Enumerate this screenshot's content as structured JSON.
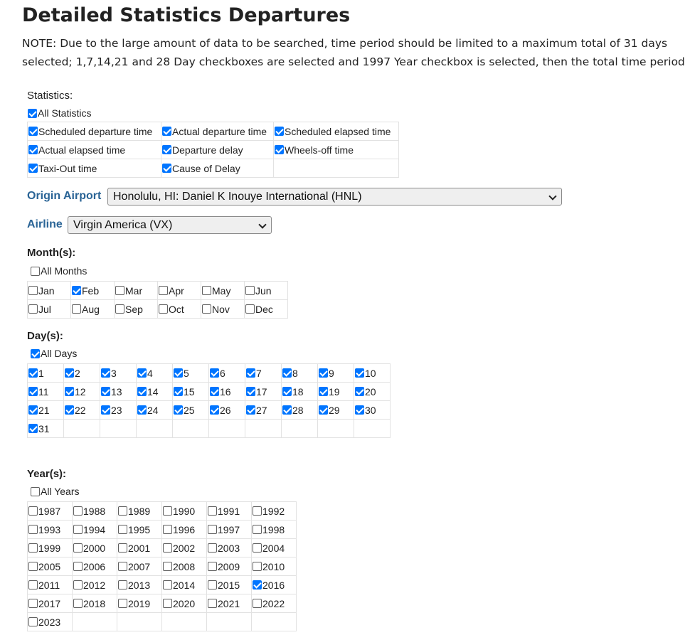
{
  "page": {
    "title": "Detailed Statistics Departures",
    "note_line1": "NOTE: Due to the large amount of data to be searched, time period should be limited to a maximum total of 31 days",
    "note_line2": "selected; 1,7,14,21 and 28 Day checkboxes are selected and 1997 Year checkbox is selected, then the total time period"
  },
  "statistics": {
    "label": "Statistics:",
    "all_label": "All Statistics",
    "all_checked": true,
    "items": [
      {
        "label": "Scheduled departure time",
        "checked": true
      },
      {
        "label": "Actual departure time",
        "checked": true
      },
      {
        "label": "Scheduled elapsed time",
        "checked": true
      },
      {
        "label": "Actual elapsed time",
        "checked": true
      },
      {
        "label": "Departure delay",
        "checked": true
      },
      {
        "label": "Wheels-off time",
        "checked": true
      },
      {
        "label": "Taxi-Out time",
        "checked": true
      },
      {
        "label": "Cause of Delay",
        "checked": true
      }
    ]
  },
  "origin": {
    "label": "Origin Airport",
    "value": "Honolulu, HI: Daniel K Inouye International (HNL)"
  },
  "airline": {
    "label": "Airline",
    "value": "Virgin America (VX)"
  },
  "months": {
    "label": "Month(s):",
    "all_label": "All Months",
    "all_checked": false,
    "items": [
      {
        "label": "Jan",
        "checked": false
      },
      {
        "label": "Feb",
        "checked": true
      },
      {
        "label": "Mar",
        "checked": false
      },
      {
        "label": "Apr",
        "checked": false
      },
      {
        "label": "May",
        "checked": false
      },
      {
        "label": "Jun",
        "checked": false
      },
      {
        "label": "Jul",
        "checked": false
      },
      {
        "label": "Aug",
        "checked": false
      },
      {
        "label": "Sep",
        "checked": false
      },
      {
        "label": "Oct",
        "checked": false
      },
      {
        "label": "Nov",
        "checked": false
      },
      {
        "label": "Dec",
        "checked": false
      }
    ]
  },
  "days": {
    "label": "Day(s):",
    "all_label": "All Days",
    "all_checked": true,
    "items": [
      {
        "label": "1",
        "checked": true
      },
      {
        "label": "2",
        "checked": true
      },
      {
        "label": "3",
        "checked": true
      },
      {
        "label": "4",
        "checked": true
      },
      {
        "label": "5",
        "checked": true
      },
      {
        "label": "6",
        "checked": true
      },
      {
        "label": "7",
        "checked": true
      },
      {
        "label": "8",
        "checked": true
      },
      {
        "label": "9",
        "checked": true
      },
      {
        "label": "10",
        "checked": true
      },
      {
        "label": "11",
        "checked": true
      },
      {
        "label": "12",
        "checked": true
      },
      {
        "label": "13",
        "checked": true
      },
      {
        "label": "14",
        "checked": true
      },
      {
        "label": "15",
        "checked": true
      },
      {
        "label": "16",
        "checked": true
      },
      {
        "label": "17",
        "checked": true
      },
      {
        "label": "18",
        "checked": true
      },
      {
        "label": "19",
        "checked": true
      },
      {
        "label": "20",
        "checked": true
      },
      {
        "label": "21",
        "checked": true
      },
      {
        "label": "22",
        "checked": true
      },
      {
        "label": "23",
        "checked": true
      },
      {
        "label": "24",
        "checked": true
      },
      {
        "label": "25",
        "checked": true
      },
      {
        "label": "26",
        "checked": true
      },
      {
        "label": "27",
        "checked": true
      },
      {
        "label": "28",
        "checked": true
      },
      {
        "label": "29",
        "checked": true
      },
      {
        "label": "30",
        "checked": true
      },
      {
        "label": "31",
        "checked": true
      }
    ]
  },
  "years": {
    "label": "Year(s):",
    "all_label": "All Years",
    "all_checked": false,
    "items": [
      {
        "label": "1987",
        "checked": false
      },
      {
        "label": "1988",
        "checked": false
      },
      {
        "label": "1989",
        "checked": false
      },
      {
        "label": "1990",
        "checked": false
      },
      {
        "label": "1991",
        "checked": false
      },
      {
        "label": "1992",
        "checked": false
      },
      {
        "label": "1993",
        "checked": false
      },
      {
        "label": "1994",
        "checked": false
      },
      {
        "label": "1995",
        "checked": false
      },
      {
        "label": "1996",
        "checked": false
      },
      {
        "label": "1997",
        "checked": false
      },
      {
        "label": "1998",
        "checked": false
      },
      {
        "label": "1999",
        "checked": false
      },
      {
        "label": "2000",
        "checked": false
      },
      {
        "label": "2001",
        "checked": false
      },
      {
        "label": "2002",
        "checked": false
      },
      {
        "label": "2003",
        "checked": false
      },
      {
        "label": "2004",
        "checked": false
      },
      {
        "label": "2005",
        "checked": false
      },
      {
        "label": "2006",
        "checked": false
      },
      {
        "label": "2007",
        "checked": false
      },
      {
        "label": "2008",
        "checked": false
      },
      {
        "label": "2009",
        "checked": false
      },
      {
        "label": "2010",
        "checked": false
      },
      {
        "label": "2011",
        "checked": false
      },
      {
        "label": "2012",
        "checked": false
      },
      {
        "label": "2013",
        "checked": false
      },
      {
        "label": "2014",
        "checked": false
      },
      {
        "label": "2015",
        "checked": false
      },
      {
        "label": "2016",
        "checked": true
      },
      {
        "label": "2017",
        "checked": false
      },
      {
        "label": "2018",
        "checked": false
      },
      {
        "label": "2019",
        "checked": false
      },
      {
        "label": "2020",
        "checked": false
      },
      {
        "label": "2021",
        "checked": false
      },
      {
        "label": "2022",
        "checked": false
      },
      {
        "label": "2023",
        "checked": false
      }
    ]
  }
}
